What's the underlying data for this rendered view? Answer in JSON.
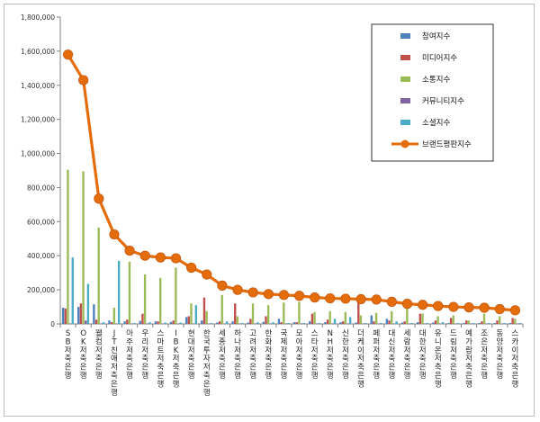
{
  "chart_data": {
    "type": "bar",
    "ylim": [
      0,
      1800000
    ],
    "yticks": [
      "0",
      "200,000",
      "400,000",
      "600,000",
      "800,000",
      "1,000,000",
      "1,200,000",
      "1,400,000",
      "1,600,000",
      "1,800,000"
    ],
    "grid": false,
    "legend_position": "top-right",
    "categories": [
      "SB저축은행",
      "OK저축은행",
      "웰컴저축은행",
      "JT친애저축은행",
      "아주저축은행",
      "우리저축은행",
      "스마트저축은행",
      "IBK저축은행",
      "현대저축은행",
      "한국투자저축은행",
      "세종저축은행",
      "하나저축은행",
      "고려저축은행",
      "한화저축은행",
      "국제저축은행",
      "모아저축은행",
      "스타저축은행",
      "NH저축은행",
      "신한저축은행",
      "더케이저축은행",
      "페퍼저축은행",
      "대신저축은행",
      "세람저축은행",
      "대한저축은행",
      "유니온저축은행",
      "드림저축은행",
      "예가람저축은행",
      "조은저축은행",
      "동양저축은행",
      "스카이저축은행"
    ],
    "series": [
      {
        "name": "참여지수",
        "color": "#4f81bd",
        "values": [
          95000,
          100000,
          115000,
          20000,
          15000,
          18000,
          15000,
          12000,
          40000,
          20000,
          8000,
          15000,
          8000,
          12000,
          30000,
          10000,
          15000,
          10000,
          10000,
          8000,
          50000,
          30000,
          8000,
          10000,
          8000,
          5000,
          5000,
          5000,
          5000,
          5000
        ]
      },
      {
        "name": "미디어지수",
        "color": "#c0504d",
        "values": [
          90000,
          120000,
          25000,
          10000,
          25000,
          60000,
          15000,
          20000,
          45000,
          155000,
          15000,
          120000,
          30000,
          45000,
          10000,
          10000,
          60000,
          25000,
          15000,
          125000,
          15000,
          20000,
          15000,
          60000,
          20000,
          35000,
          20000,
          15000,
          20000,
          35000
        ]
      },
      {
        "name": "소통지수",
        "color": "#9bbb59",
        "values": [
          905000,
          895000,
          565000,
          95000,
          365000,
          290000,
          270000,
          330000,
          120000,
          75000,
          170000,
          45000,
          120000,
          110000,
          125000,
          130000,
          70000,
          75000,
          70000,
          50000,
          65000,
          75000,
          105000,
          60000,
          45000,
          50000,
          20000,
          60000,
          45000,
          30000
        ]
      },
      {
        "name": "커뮤니티지수",
        "color": "#8064a2",
        "values": [
          3000,
          20000,
          3000,
          3000,
          3000,
          3000,
          3000,
          3000,
          3000,
          3000,
          3000,
          3000,
          3000,
          3000,
          3000,
          3000,
          3000,
          3000,
          3000,
          3000,
          3000,
          3000,
          3000,
          3000,
          3000,
          3000,
          3000,
          3000,
          3000,
          3000
        ]
      },
      {
        "name": "소셜지수",
        "color": "#4bacc6",
        "values": [
          390000,
          235000,
          10000,
          370000,
          5000,
          10000,
          8000,
          8000,
          110000,
          5000,
          15000,
          5000,
          10000,
          10000,
          5000,
          5000,
          5000,
          30000,
          40000,
          5000,
          5000,
          15000,
          5000,
          5000,
          10000,
          5000,
          5000,
          5000,
          5000,
          5000
        ]
      }
    ],
    "line": {
      "name": "브랜드평판지수",
      "color": "#e46c0a",
      "values": [
        1580000,
        1430000,
        735000,
        525000,
        430000,
        400000,
        390000,
        385000,
        330000,
        290000,
        225000,
        200000,
        185000,
        175000,
        170000,
        165000,
        155000,
        150000,
        148000,
        145000,
        143000,
        130000,
        118000,
        112000,
        105000,
        100000,
        97000,
        95000,
        87000,
        80000
      ]
    }
  }
}
